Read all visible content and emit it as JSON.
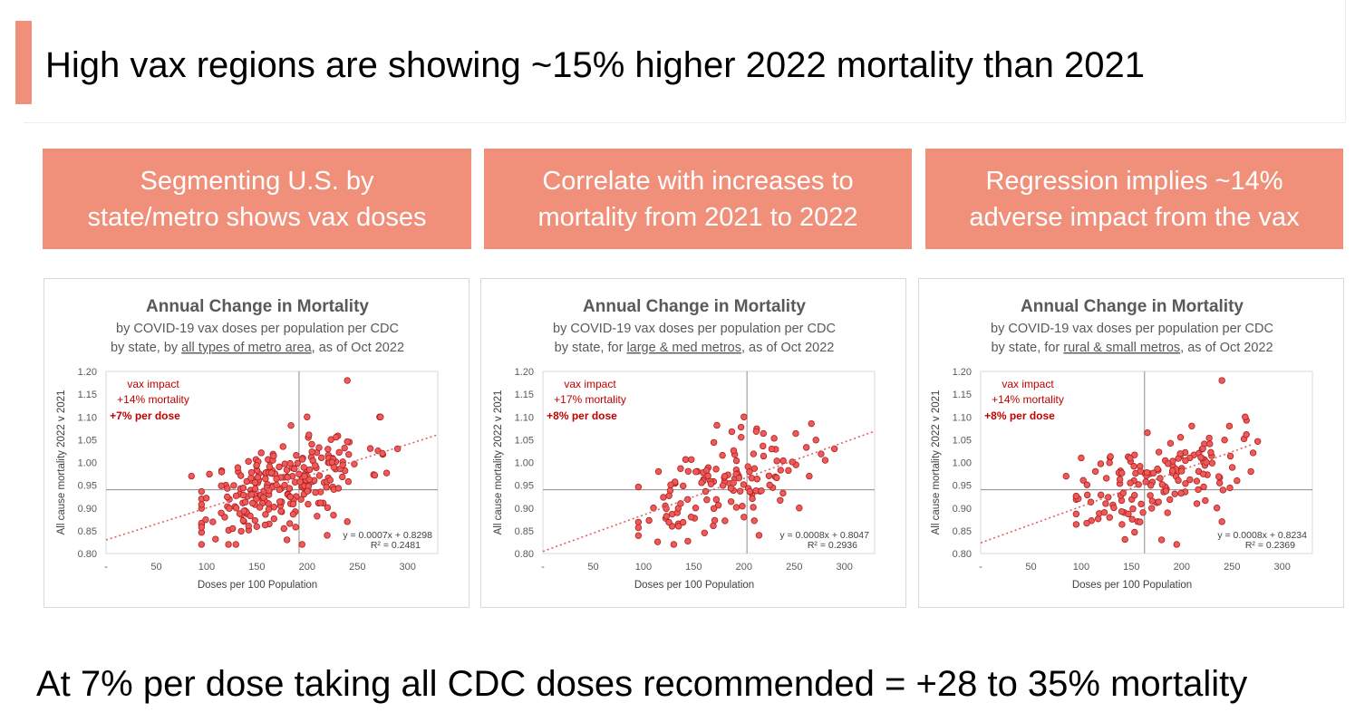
{
  "header": {
    "title": "High vax regions are showing ~15% higher 2022 mortality than 2021"
  },
  "banners": [
    "Segmenting U.S. by\nstate/metro shows vax doses",
    "Correlate with increases to\nmortality from 2021 to 2022",
    "Regression implies ~14%\nadverse impact from the vax"
  ],
  "footer": {
    "text": "At 7% per dose taking all CDC doses recommended = +28 to 35% mortality"
  },
  "colors": {
    "accent": "#f0907a",
    "marker": "#ee5a5a",
    "marker_edge": "#b02020",
    "annotation": "#c00000"
  },
  "chart_data": [
    {
      "type": "scatter",
      "title": "Annual Change in Mortality",
      "subtitle1": "by COVID-19 vax doses per population per CDC",
      "subtitle2_prefix": "by state, by ",
      "subtitle2_link": "all types of metro area",
      "subtitle2_suffix": ", as of Oct 2022",
      "xlabel": "Doses per 100 Population",
      "ylabel": "All cause mortality 2022 v 2021",
      "xlim": [
        0,
        330
      ],
      "ylim": [
        0.8,
        1.2
      ],
      "xticks": [
        "-",
        "50",
        "100",
        "150",
        "200",
        "250",
        "300"
      ],
      "yticks": [
        "0.80",
        "0.85",
        "0.90",
        "0.95",
        "1.00",
        "1.05",
        "1.10",
        "1.15",
        "1.20"
      ],
      "xref": 192,
      "yref": 0.94,
      "annotation": [
        "vax impact",
        "+14% mortality",
        "+7% per dose"
      ],
      "equation": "y = 0.0007x + 0.8298",
      "r2": "R² = 0.2481",
      "trend": {
        "slope": 0.0007,
        "intercept": 0.8298,
        "x0": 0,
        "x1": 330
      },
      "seed": 11,
      "n": 260,
      "outliers": [
        [
          240,
          1.18
        ],
        [
          200,
          1.1
        ],
        [
          290,
          1.03
        ],
        [
          85,
          0.97
        ],
        [
          195,
          0.82
        ],
        [
          180,
          0.83
        ],
        [
          240,
          0.87
        ],
        [
          220,
          0.84
        ],
        [
          275,
          1.02
        ]
      ]
    },
    {
      "type": "scatter",
      "title": "Annual Change in Mortality",
      "subtitle1": "by COVID-19 vax doses per population per CDC",
      "subtitle2_prefix": "by state, for ",
      "subtitle2_link": "large & med metros",
      "subtitle2_suffix": ", as of Oct 2022",
      "xlabel": "Doses per 100 Population",
      "ylabel": "All cause mortality 2022 v 2021",
      "xlim": [
        0,
        330
      ],
      "ylim": [
        0.8,
        1.2
      ],
      "xticks": [
        "-",
        "50",
        "100",
        "150",
        "200",
        "250",
        "300"
      ],
      "yticks": [
        "0.80",
        "0.85",
        "0.90",
        "0.95",
        "1.00",
        "1.05",
        "1.10",
        "1.15",
        "1.20"
      ],
      "xref": 203,
      "yref": 0.94,
      "annotation": [
        "vax impact",
        "+17% mortality",
        "+8% per dose"
      ],
      "equation": "y = 0.0008x + 0.8047",
      "r2": "R² = 0.2936",
      "trend": {
        "slope": 0.0008,
        "intercept": 0.8047,
        "x0": 0,
        "x1": 330
      },
      "seed": 23,
      "n": 130,
      "outliers": [
        [
          200,
          1.1
        ],
        [
          110,
          0.9
        ],
        [
          115,
          0.98
        ],
        [
          290,
          1.03
        ],
        [
          200,
          0.88
        ],
        [
          215,
          0.84
        ],
        [
          255,
          0.9
        ],
        [
          135,
          0.86
        ],
        [
          265,
          0.97
        ]
      ]
    },
    {
      "type": "scatter",
      "title": "Annual Change in Mortality",
      "subtitle1": "by COVID-19 vax doses per population per CDC",
      "subtitle2_prefix": "by state, for ",
      "subtitle2_link": "rural & small metros",
      "subtitle2_suffix": ", as of Oct 2022",
      "xlabel": "Doses per 100 Population",
      "ylabel": "All cause mortality 2022 v 2021",
      "xlim": [
        0,
        330
      ],
      "ylim": [
        0.8,
        1.2
      ],
      "xticks": [
        "-",
        "50",
        "100",
        "150",
        "200",
        "250",
        "300"
      ],
      "yticks": [
        "0.80",
        "0.85",
        "0.90",
        "0.95",
        "1.00",
        "1.05",
        "1.10",
        "1.15",
        "1.20"
      ],
      "xref": 163,
      "yref": 0.94,
      "annotation": [
        "vax impact",
        "+14% mortality",
        "+8% per dose"
      ],
      "equation": "y = 0.0008x + 0.8234",
      "r2": "R² = 0.2369",
      "trend": {
        "slope": 0.0008,
        "intercept": 0.8234,
        "x0": 0,
        "x1": 270
      },
      "seed": 37,
      "n": 150,
      "outliers": [
        [
          240,
          1.18
        ],
        [
          85,
          0.97
        ],
        [
          100,
          1.01
        ],
        [
          195,
          0.82
        ],
        [
          180,
          0.83
        ],
        [
          240,
          0.87
        ],
        [
          235,
          0.9
        ],
        [
          255,
          0.96
        ],
        [
          210,
          1.08
        ]
      ]
    }
  ]
}
